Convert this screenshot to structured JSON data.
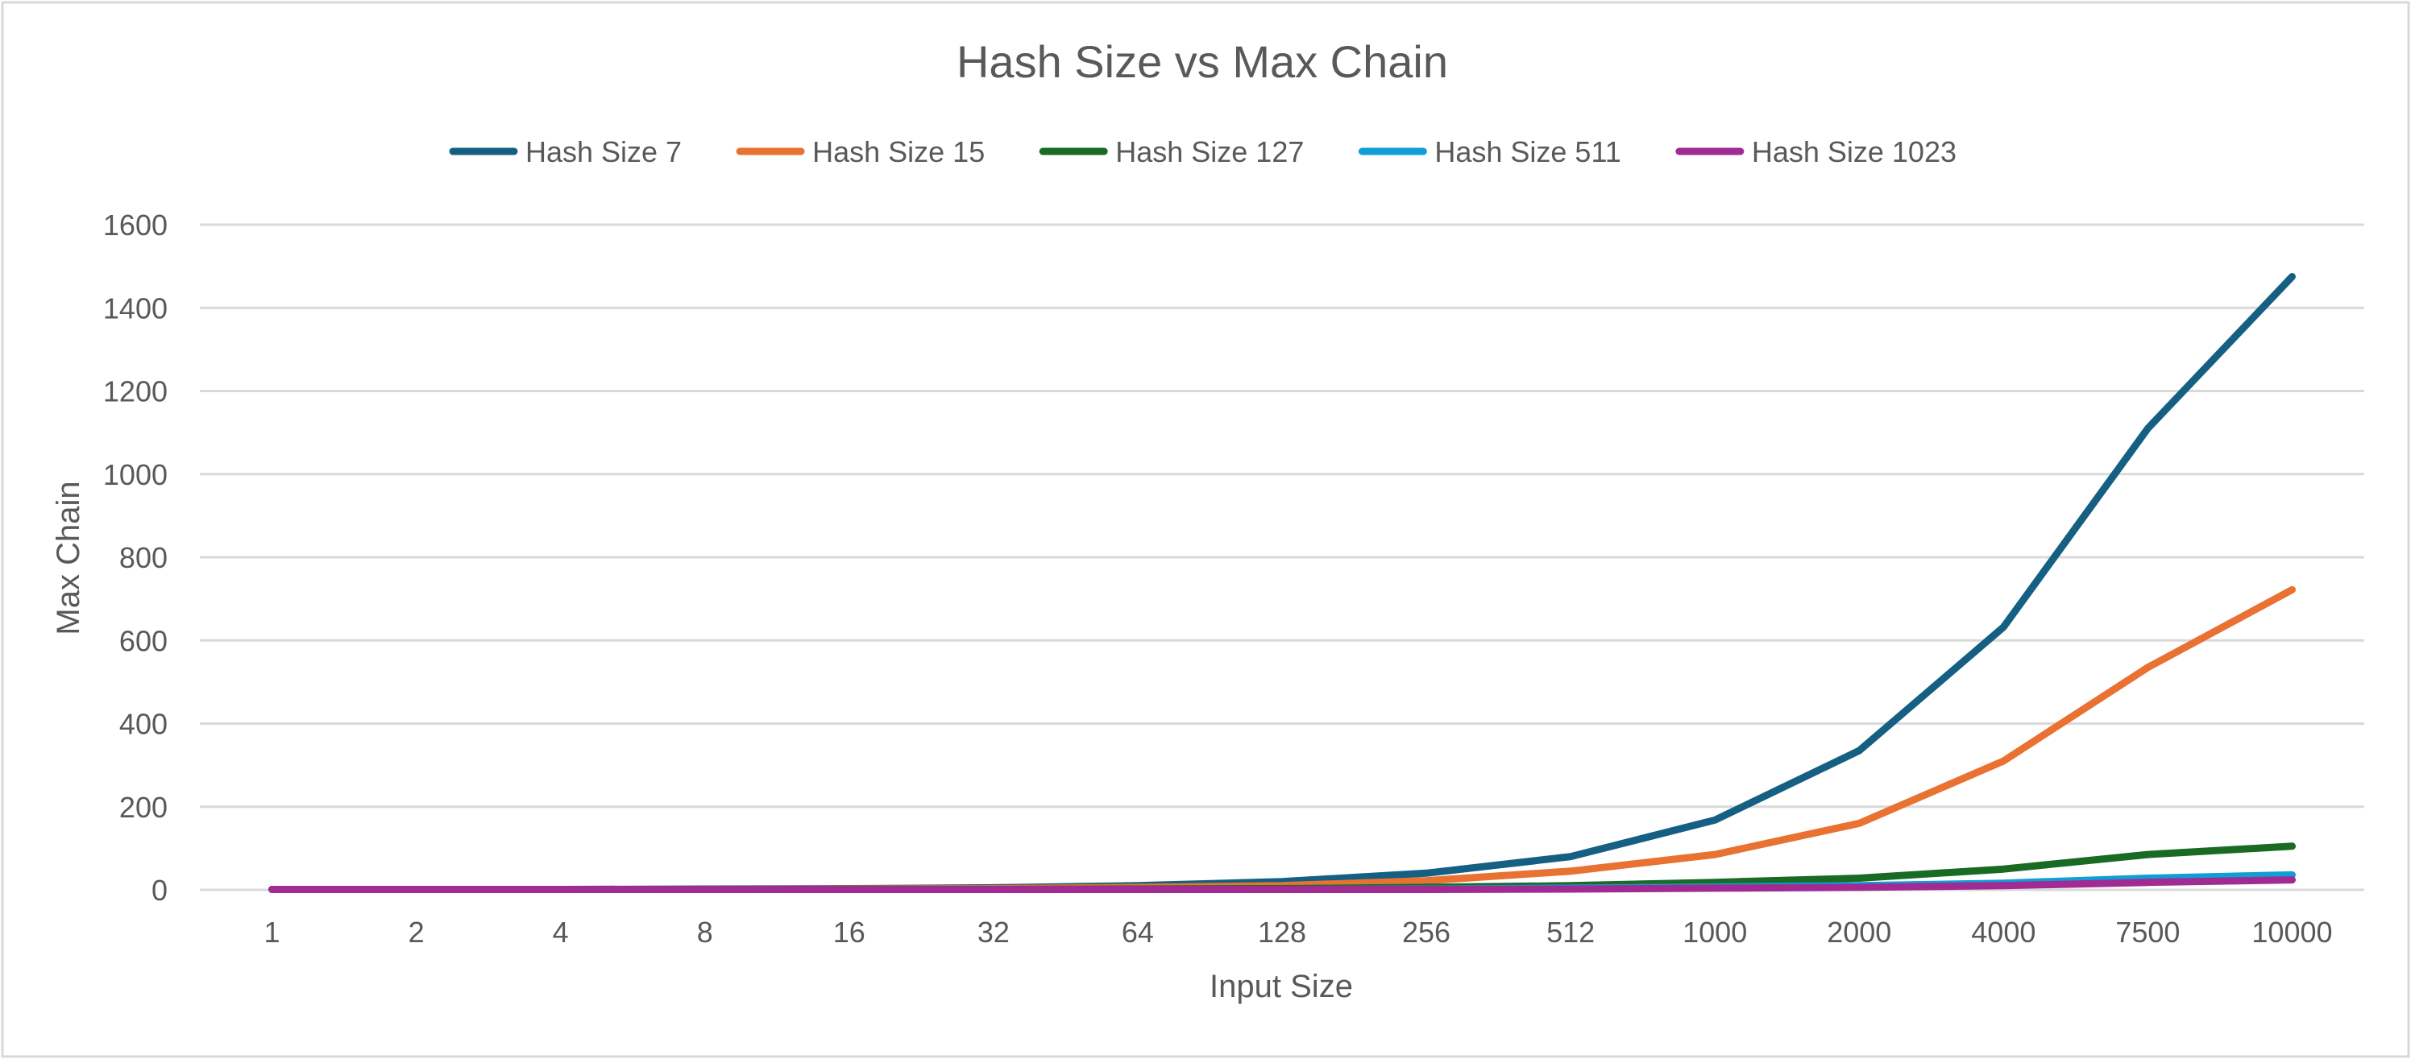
{
  "chart_data": {
    "type": "line",
    "title": "Hash Size vs Max Chain",
    "xlabel": "Input Size",
    "ylabel": "Max Chain",
    "categories": [
      "1",
      "2",
      "4",
      "8",
      "16",
      "32",
      "64",
      "128",
      "256",
      "512",
      "1000",
      "2000",
      "4000",
      "7500",
      "10000"
    ],
    "ylim": [
      0,
      1600
    ],
    "yticks": [
      "0",
      "200",
      "400",
      "600",
      "800",
      "1000",
      "1200",
      "1400",
      "1600"
    ],
    "grid": true,
    "legend_position": "top",
    "series": [
      {
        "name": "Hash Size 7",
        "color": "#156082",
        "values": [
          1,
          1,
          1,
          2,
          3,
          5,
          10,
          20,
          40,
          80,
          168,
          335,
          632,
          1110,
          1475
        ]
      },
      {
        "name": "Hash Size 15",
        "color": "#E97132",
        "values": [
          1,
          1,
          1,
          1,
          2,
          3,
          6,
          10,
          22,
          45,
          85,
          160,
          310,
          535,
          722
        ]
      },
      {
        "name": "Hash Size 127",
        "color": "#196B24",
        "values": [
          1,
          1,
          1,
          1,
          1,
          1,
          2,
          3,
          6,
          10,
          18,
          28,
          50,
          85,
          105
        ]
      },
      {
        "name": "Hash Size 511",
        "color": "#0F9ED5",
        "values": [
          1,
          1,
          1,
          1,
          1,
          1,
          1,
          1,
          2,
          4,
          7,
          10,
          16,
          28,
          36
        ]
      },
      {
        "name": "Hash Size 1023",
        "color": "#A02B93",
        "values": [
          1,
          1,
          1,
          1,
          1,
          1,
          1,
          1,
          1,
          2,
          4,
          6,
          10,
          18,
          24
        ]
      }
    ]
  }
}
